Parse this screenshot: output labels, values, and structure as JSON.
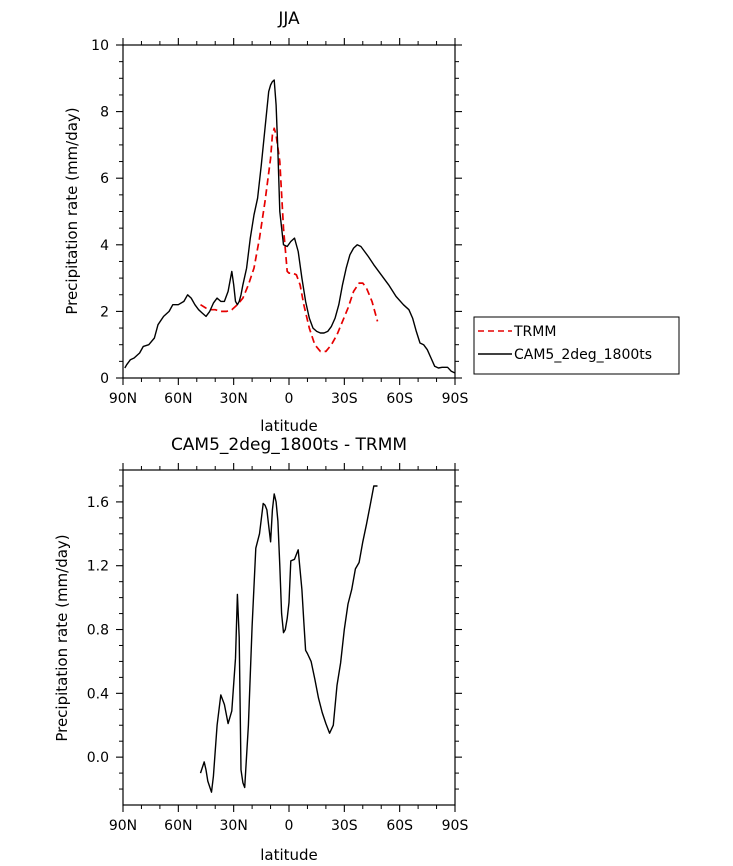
{
  "chart_data": [
    {
      "type": "line",
      "title": "JJA",
      "xlabel": "latitude",
      "ylabel": "Precipitation rate (mm/day)",
      "xlim": [
        90,
        -90
      ],
      "ylim": [
        0,
        10
      ],
      "x_ticks": [
        90,
        60,
        30,
        0,
        -30,
        -60,
        -90
      ],
      "x_tick_labels": [
        "90N",
        "60N",
        "30N",
        "0",
        "30S",
        "60S",
        "90S"
      ],
      "y_ticks": [
        0,
        2,
        4,
        6,
        8,
        10
      ],
      "y_tick_labels": [
        "0",
        "2",
        "4",
        "6",
        "8",
        "10"
      ],
      "legend_position": "right",
      "series": [
        {
          "name": "TRMM",
          "color": "#e60000",
          "dash": "dashed",
          "x": [
            48,
            45,
            42,
            40,
            37,
            34,
            31,
            28,
            25,
            22,
            19,
            16,
            13,
            10,
            9,
            8,
            7,
            5,
            3,
            1,
            0,
            -2,
            -4,
            -6,
            -8,
            -11,
            -14,
            -17,
            -20,
            -23,
            -26,
            -29,
            -32,
            -35,
            -38,
            -40,
            -42,
            -45,
            -48
          ],
          "y": [
            2.2,
            2.1,
            2.05,
            2.05,
            2.0,
            2.0,
            2.05,
            2.2,
            2.4,
            2.8,
            3.3,
            4.2,
            5.3,
            6.6,
            7.3,
            7.5,
            7.3,
            6.5,
            4.5,
            3.2,
            3.15,
            3.15,
            3.1,
            2.8,
            2.2,
            1.5,
            1.0,
            0.8,
            0.8,
            1.0,
            1.3,
            1.7,
            2.1,
            2.6,
            2.85,
            2.85,
            2.7,
            2.3,
            1.7
          ]
        },
        {
          "name": "CAM5_2deg_1800ts",
          "color": "#000000",
          "dash": "solid",
          "x": [
            89,
            88,
            86,
            84,
            81,
            79,
            76,
            73,
            71,
            68,
            65,
            63,
            60,
            57,
            55,
            53,
            51,
            49,
            47,
            45,
            43,
            41,
            39,
            37,
            35,
            33,
            31,
            30,
            29,
            28,
            27,
            26,
            25,
            23,
            21,
            19,
            17,
            15,
            13,
            11,
            10,
            9,
            8,
            7,
            6,
            5,
            3,
            1,
            -1,
            -3,
            -5,
            -7,
            -9,
            -11,
            -13,
            -15,
            -17,
            -19,
            -21,
            -23,
            -25,
            -27,
            -29,
            -31,
            -33,
            -35,
            -37,
            -39,
            -41,
            -43,
            -46,
            -50,
            -54,
            -58,
            -62,
            -65,
            -67,
            -69,
            -71,
            -73,
            -75,
            -77,
            -79,
            -81,
            -83,
            -86,
            -88,
            -90
          ],
          "y": [
            0.3,
            0.4,
            0.55,
            0.6,
            0.75,
            0.95,
            1.0,
            1.2,
            1.6,
            1.85,
            2.0,
            2.2,
            2.2,
            2.3,
            2.5,
            2.4,
            2.2,
            2.05,
            1.95,
            1.85,
            2.0,
            2.25,
            2.4,
            2.3,
            2.3,
            2.6,
            3.2,
            2.8,
            2.3,
            2.2,
            2.3,
            2.5,
            2.8,
            3.3,
            4.2,
            4.9,
            5.4,
            6.4,
            7.5,
            8.6,
            8.8,
            8.9,
            8.95,
            8.2,
            6.8,
            5.0,
            4.0,
            3.95,
            4.1,
            4.2,
            3.8,
            3.0,
            2.3,
            1.8,
            1.5,
            1.4,
            1.35,
            1.35,
            1.4,
            1.55,
            1.8,
            2.2,
            2.8,
            3.3,
            3.7,
            3.9,
            4.0,
            3.95,
            3.8,
            3.65,
            3.4,
            3.1,
            2.8,
            2.45,
            2.2,
            2.05,
            1.8,
            1.4,
            1.05,
            1.0,
            0.85,
            0.6,
            0.35,
            0.3,
            0.32,
            0.32,
            0.2,
            0.15
          ]
        }
      ]
    },
    {
      "type": "line",
      "title": "CAM5_2deg_1800ts - TRMM",
      "xlabel": "latitude",
      "ylabel": "Precipitation rate (mm/day)",
      "xlim": [
        90,
        -90
      ],
      "ylim": [
        -0.3,
        1.8
      ],
      "x_ticks": [
        90,
        60,
        30,
        0,
        -30,
        -60,
        -90
      ],
      "x_tick_labels": [
        "90N",
        "60N",
        "30N",
        "0",
        "30S",
        "60S",
        "90S"
      ],
      "y_ticks": [
        0,
        0.4,
        0.8,
        1.2,
        1.6
      ],
      "y_tick_labels": [
        "0.0",
        "0.4",
        "0.8",
        "1.2",
        "1.6"
      ],
      "series": [
        {
          "name": "CAM5_2deg_1800ts - TRMM",
          "color": "#000000",
          "dash": "solid",
          "x": [
            48,
            46,
            45,
            44,
            42,
            41,
            39,
            37,
            35,
            33,
            31,
            29,
            28,
            27,
            26,
            25,
            24,
            22,
            20,
            18,
            16,
            14,
            13,
            12,
            11,
            10,
            9,
            8,
            7,
            6,
            5,
            4,
            3,
            2,
            1,
            0,
            -1,
            -3,
            -5,
            -7,
            -8,
            -9,
            -10,
            -12,
            -14,
            -16,
            -18,
            -20,
            -22,
            -24,
            -26,
            -28,
            -30,
            -32,
            -34,
            -36,
            -38,
            -40,
            -42,
            -44,
            -46,
            -48
          ],
          "y": [
            -0.1,
            -0.03,
            -0.08,
            -0.15,
            -0.22,
            -0.12,
            0.2,
            0.39,
            0.33,
            0.21,
            0.29,
            0.62,
            1.02,
            0.75,
            -0.08,
            -0.16,
            -0.19,
            0.2,
            0.82,
            1.31,
            1.4,
            1.59,
            1.58,
            1.55,
            1.45,
            1.35,
            1.55,
            1.65,
            1.6,
            1.48,
            1.2,
            0.9,
            0.78,
            0.8,
            0.87,
            0.97,
            1.23,
            1.24,
            1.3,
            1.05,
            0.85,
            0.67,
            0.65,
            0.6,
            0.49,
            0.37,
            0.28,
            0.21,
            0.15,
            0.2,
            0.45,
            0.59,
            0.8,
            0.96,
            1.05,
            1.18,
            1.22,
            1.35,
            1.46,
            1.58,
            1.7,
            1.7
          ]
        }
      ]
    }
  ]
}
